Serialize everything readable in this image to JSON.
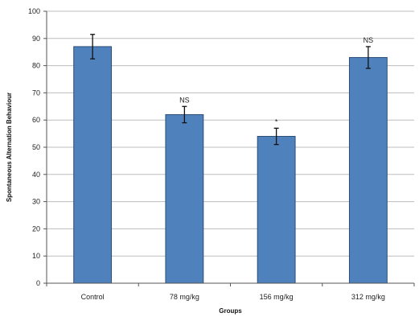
{
  "chart_data": {
    "type": "bar",
    "title": "",
    "xlabel": "Groups",
    "ylabel": "Spontaneous Alternation Behaviour",
    "categories": [
      "Control",
      "78 mg/kg",
      "156 mg/kg",
      "312 mg/kg"
    ],
    "values": [
      87,
      62,
      54,
      83
    ],
    "errors": [
      4.5,
      3,
      3,
      4
    ],
    "significance": [
      "",
      "NS",
      "*",
      "NS"
    ],
    "ylim": [
      0,
      100
    ],
    "yticks": [
      0,
      10,
      20,
      30,
      40,
      50,
      60,
      70,
      80,
      90,
      100
    ],
    "grid": true,
    "legend": "none",
    "bar_color": "#4f81bd"
  }
}
